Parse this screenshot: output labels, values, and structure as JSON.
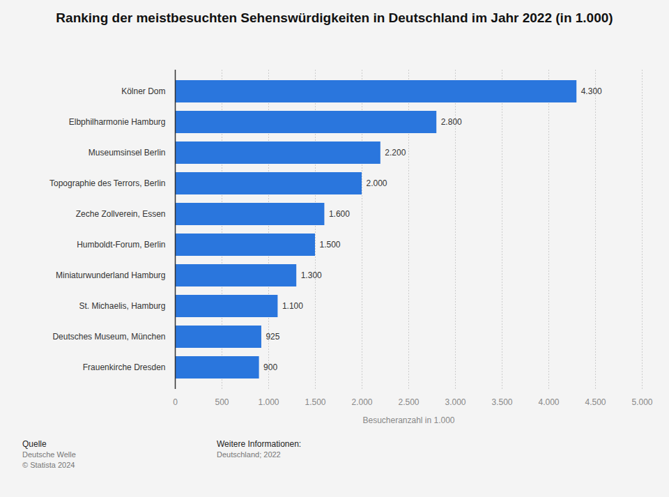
{
  "chart_data": {
    "type": "bar",
    "orientation": "horizontal",
    "title": "Ranking der meistbesuchten Sehenswürdigkeiten in Deutschland im Jahr 2022 (in 1.000)",
    "xlabel": "Besucheranzahl in 1.000",
    "categories": [
      "Kölner Dom",
      "Elbphilharmonie Hamburg",
      "Museumsinsel Berlin",
      "Topographie des Terrors, Berlin",
      "Zeche Zollverein, Essen",
      "Humboldt-Forum, Berlin",
      "Miniaturwunderland Hamburg",
      "St. Michaelis, Hamburg",
      "Deutsches Museum, München",
      "Frauenkirche Dresden"
    ],
    "values": [
      4300,
      2800,
      2200,
      2000,
      1600,
      1500,
      1300,
      1100,
      925,
      900
    ],
    "value_labels": [
      "4.300",
      "2.800",
      "2.200",
      "2.000",
      "1.600",
      "1.500",
      "1.300",
      "1.100",
      "925",
      "900"
    ],
    "data_labels": true,
    "color": "#2a76dd",
    "xlim": [
      0,
      5000
    ],
    "xticks": [
      0,
      500,
      {
        "value": 1000,
        "label": "1.000"
      },
      {
        "value": 1500,
        "label": "1.500"
      },
      {
        "value": 2000,
        "label": "2.000"
      },
      {
        "value": 2500,
        "label": "2.500"
      },
      {
        "value": 3000,
        "label": "3.000"
      },
      {
        "value": 3500,
        "label": "3.500"
      },
      {
        "value": 4000,
        "label": "4.000"
      },
      {
        "value": 4500,
        "label": "4.500"
      },
      {
        "value": 5000,
        "label": "5.000"
      }
    ],
    "grid": true,
    "annotations": [
      "Quelle",
      "Deutsche Welle",
      "© Statista 2024",
      "Weitere Informationen:",
      "Deutschland; 2022"
    ]
  }
}
